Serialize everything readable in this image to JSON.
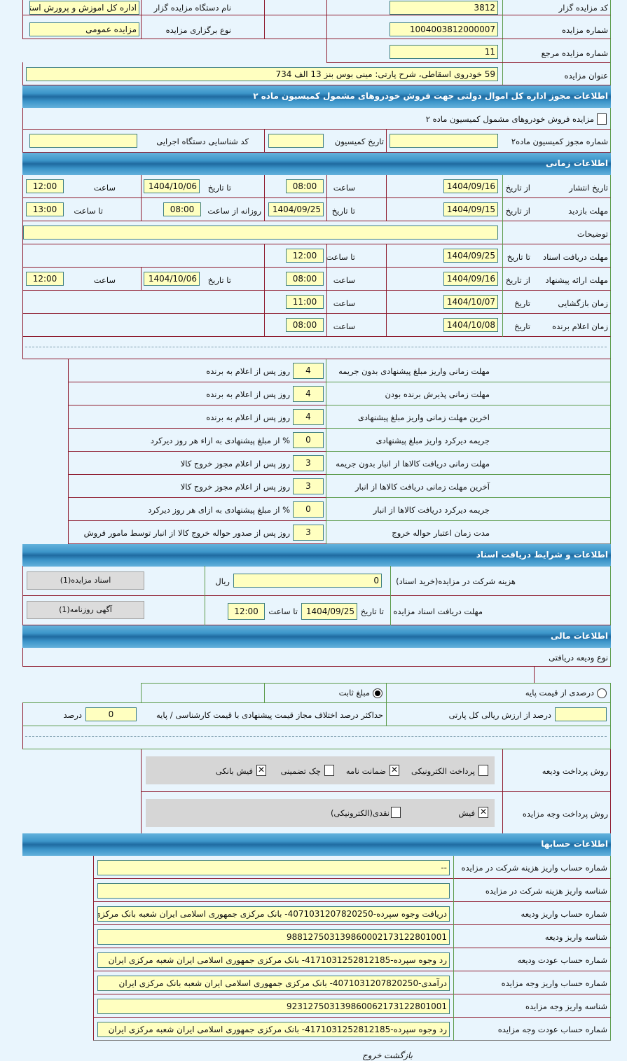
{
  "general": {
    "code_label": "کد مزایده گزار",
    "code_value": "3812",
    "org_label": "نام دستگاه مزایده گزار",
    "org_value": "اداره کل اموزش و پرورش استا",
    "number_label": "شماره مزایده",
    "number_value": "1004003812000007",
    "type_label": "نوع برگزاری مزایده",
    "type_value": "مزایده عمومی",
    "ref_label": "شماره مزایده مرجع",
    "ref_value": "11",
    "title_label": "عنوان مزایده",
    "title_value": "59 خودروی اسقاطی، شرح پارتی: مینی بوس بنز 13 الف 734"
  },
  "permit": {
    "header": "اطلاعات مجوز اداره کل اموال دولتی جهت فروش خودروهای مشمول کمیسیون ماده ۲",
    "checkbox_label": "مزایده فروش خودروهای مشمول کمیسیون ماده ۲",
    "checkbox_checked": false,
    "permit_no_label": "شماره مجوز کمیسیون ماده۲",
    "permit_no_value": "",
    "commission_date_label": "تاریخ کمیسیون",
    "commission_date_value": "",
    "exec_code_label": "کد شناسایی دستگاه اجرایی",
    "exec_code_value": ""
  },
  "timing": {
    "header": "اطلاعات زمانی",
    "publish": {
      "label": "تاریخ انتشار",
      "from_label": "از تاریخ",
      "from": "1404/09/16",
      "time_label": "ساعت",
      "time": "08:00",
      "to_label": "تا تاریخ",
      "to": "1404/10/06",
      "to_time_label": "ساعت",
      "to_time": "12:00"
    },
    "visit": {
      "label": "مهلت بازدید",
      "from_label": "از تاریخ",
      "from": "1404/09/15",
      "to_label": "تا تاریخ",
      "to": "1404/09/25",
      "daily_label": "روزانه از ساعت",
      "daily_from": "08:00",
      "to_time_label": "تا ساعت",
      "to_time": "13:00"
    },
    "desc": {
      "label": "توضیحات",
      "value": ""
    },
    "docs": {
      "label": "مهلت دریافت اسناد",
      "to_label": "تا تاریخ",
      "to": "1404/09/25",
      "time_label": "تا ساعت",
      "time": "12:00"
    },
    "offer": {
      "label": "مهلت ارائه پیشنهاد",
      "from_label": "از تاریخ",
      "from": "1404/09/16",
      "time_label": "ساعت",
      "time": "08:00",
      "to_label": "تا تاریخ",
      "to": "1404/10/06",
      "to_time_label": "ساعت",
      "to_time": "12:00"
    },
    "opening": {
      "label": "زمان بازگشایی",
      "date_label": "تاریخ",
      "date": "1404/10/07",
      "time_label": "ساعت",
      "time": "11:00"
    },
    "winner": {
      "label": "زمان اعلام برنده",
      "date_label": "تاریخ",
      "date": "1404/10/08",
      "time_label": "ساعت",
      "time": "08:00"
    }
  },
  "deadlines": [
    {
      "label": "مهلت زمانی واریز مبلغ پیشنهادی بدون جریمه",
      "value": "4",
      "unit": "روز پس از اعلام به برنده"
    },
    {
      "label": "مهلت زمانی پذیرش برنده بودن",
      "value": "4",
      "unit": "روز پس از اعلام به برنده"
    },
    {
      "label": "اخرین مهلت زمانی واریز مبلغ پیشنهادی",
      "value": "4",
      "unit": "روز پس از اعلام به برنده"
    },
    {
      "label": "جریمه دیرکرد واریز مبلغ پیشنهادی",
      "value": "0",
      "unit": "% از مبلغ پیشنهادی به ازاء هر روز دیرکرد"
    },
    {
      "label": "مهلت زمانی دریافت کالاها از انبار بدون جریمه",
      "value": "3",
      "unit": "روز پس از اعلام مجوز خروج کالا"
    },
    {
      "label": "آخرین مهلت زمانی دریافت کالاها از انبار",
      "value": "3",
      "unit": "روز پس از اعلام مجوز خروج کالا"
    },
    {
      "label": "جریمه دیرکرد دریافت کالاها از انبار",
      "value": "0",
      "unit": "% از مبلغ پیشنهادی به ازای هر روز دیرکرد"
    },
    {
      "label": "مدت زمان اعتبار حواله خروج",
      "value": "3",
      "unit": "روز پس از صدور حواله خروج کالا از انبار توسط مامور فروش"
    }
  ],
  "docs": {
    "header": "اطلاعات و شرایط دریافت اسناد",
    "fee_label": "هزینه شرکت در مزایده(خرید اسناد)",
    "fee_value": "0",
    "fee_unit": "ریال",
    "docs_button": "اسناد مزایده(1)",
    "deadline_label": "مهلت دریافت اسناد مزایده",
    "to_date_label": "تا تاریخ",
    "to_date": "1404/09/25",
    "to_time_label": "تا ساعت",
    "to_time": "12:00",
    "ad_button": "آگهی روزنامه(1)"
  },
  "finance": {
    "header": "اطلاعات مالی",
    "deposit_type_label": "نوع ودیعه دریافتی",
    "radio_percent": "درصدی از قیمت پایه",
    "radio_fixed": "مبلغ ثابت",
    "selected": "fixed",
    "percent_label": "درصد از ارزش ریالی کل پارتی",
    "percent_value": "",
    "max_diff_label": "حداکثر درصد اختلاف مجاز قیمت پیشنهادی با قیمت کارشناسی / پایه",
    "max_diff_value": "0",
    "max_diff_unit": "درصد",
    "deposit_method_label": "روش پرداخت ودیعه",
    "deposit_methods": [
      {
        "label": "پرداخت الکترونیکی",
        "checked": false
      },
      {
        "label": "ضمانت نامه",
        "checked": true
      },
      {
        "label": "چک تضمینی",
        "checked": false
      },
      {
        "label": "فیش بانکی",
        "checked": true
      }
    ],
    "payment_method_label": "روش پرداخت وجه مزایده",
    "payment_methods": [
      {
        "label": "فیش",
        "checked": true
      },
      {
        "label": "نقدی(الکترونیکی)",
        "checked": false
      }
    ]
  },
  "accounts": {
    "header": "اطلاعات حسابها",
    "rows": [
      {
        "label": "شماره حساب واریز هزینه شرکت در مزایده",
        "value": "--"
      },
      {
        "label": "شناسه واریز هزینه شرکت در مزایده",
        "value": ""
      },
      {
        "label": "شماره حساب واریز ودیعه",
        "value": "دریافت وجوه سپرده-4071031207820250- بانک مرکزی جمهوری اسلامی ایران شعبه بانک مرکزی ا"
      },
      {
        "label": "شناسه واریز ودیعه",
        "value": "988127503139860002173122801001"
      },
      {
        "label": "شماره حساب عودت ودیعه",
        "value": "رد وجوه سپرده-4171031252812185- بانک مرکزی جمهوری اسلامی ایران شعبه مرکزی ایران"
      },
      {
        "label": "شماره حساب واریز وجه مزایده",
        "value": "درآمدی-4071031207820250- بانک مرکزی جمهوری اسلامی ایران شعبه بانک مرکزی ایران"
      },
      {
        "label": "شناسه واریز وجه مزایده",
        "value": "923127503139860062173122801001"
      },
      {
        "label": "شماره حساب عودت وجه مزایده",
        "value": "رد وجوه سپرده-4171031252812185- بانک مرکزی جمهوری اسلامی ایران شعبه مرکزی ایران"
      }
    ]
  },
  "footer": {
    "back": "بازگشت",
    "exit": "خروج"
  }
}
